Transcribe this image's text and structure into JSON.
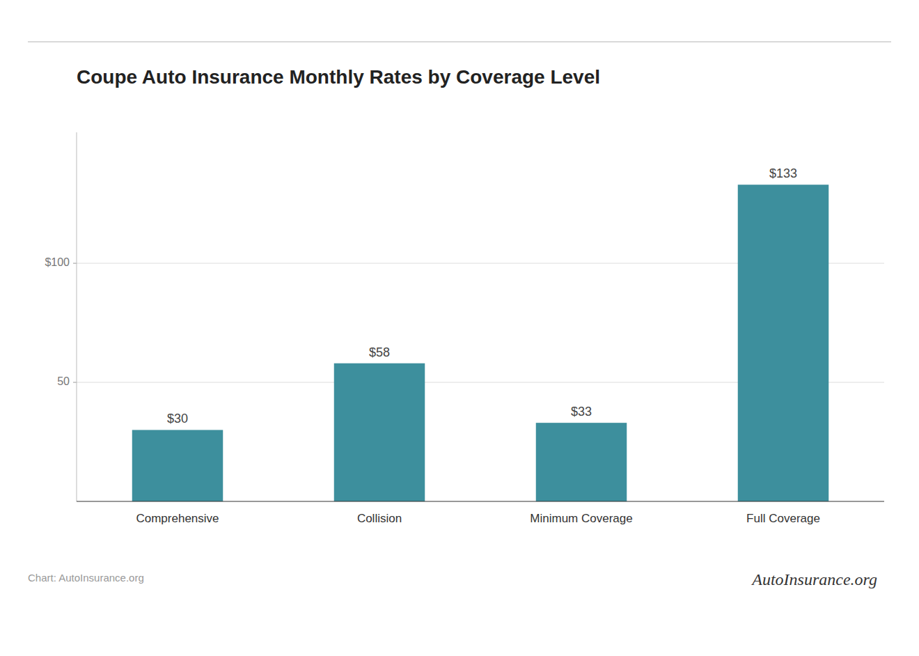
{
  "chart_data": {
    "type": "bar",
    "title": "Coupe Auto Insurance Monthly Rates by Coverage Level",
    "categories": [
      "Comprehensive",
      "Collision",
      "Minimum Coverage",
      "Full Coverage"
    ],
    "values": [
      30,
      58,
      33,
      133
    ],
    "value_labels": [
      "$30",
      "$58",
      "$33",
      "$133"
    ],
    "data_labels": true,
    "color": "#3d8f9d",
    "ylim": [
      0,
      155
    ],
    "yticks": [
      50,
      {
        "value": 100,
        "label": "$100"
      }
    ],
    "grid": true,
    "annotations": [
      "Chart: AutoInsurance.org",
      "AutoInsurance.org"
    ]
  }
}
